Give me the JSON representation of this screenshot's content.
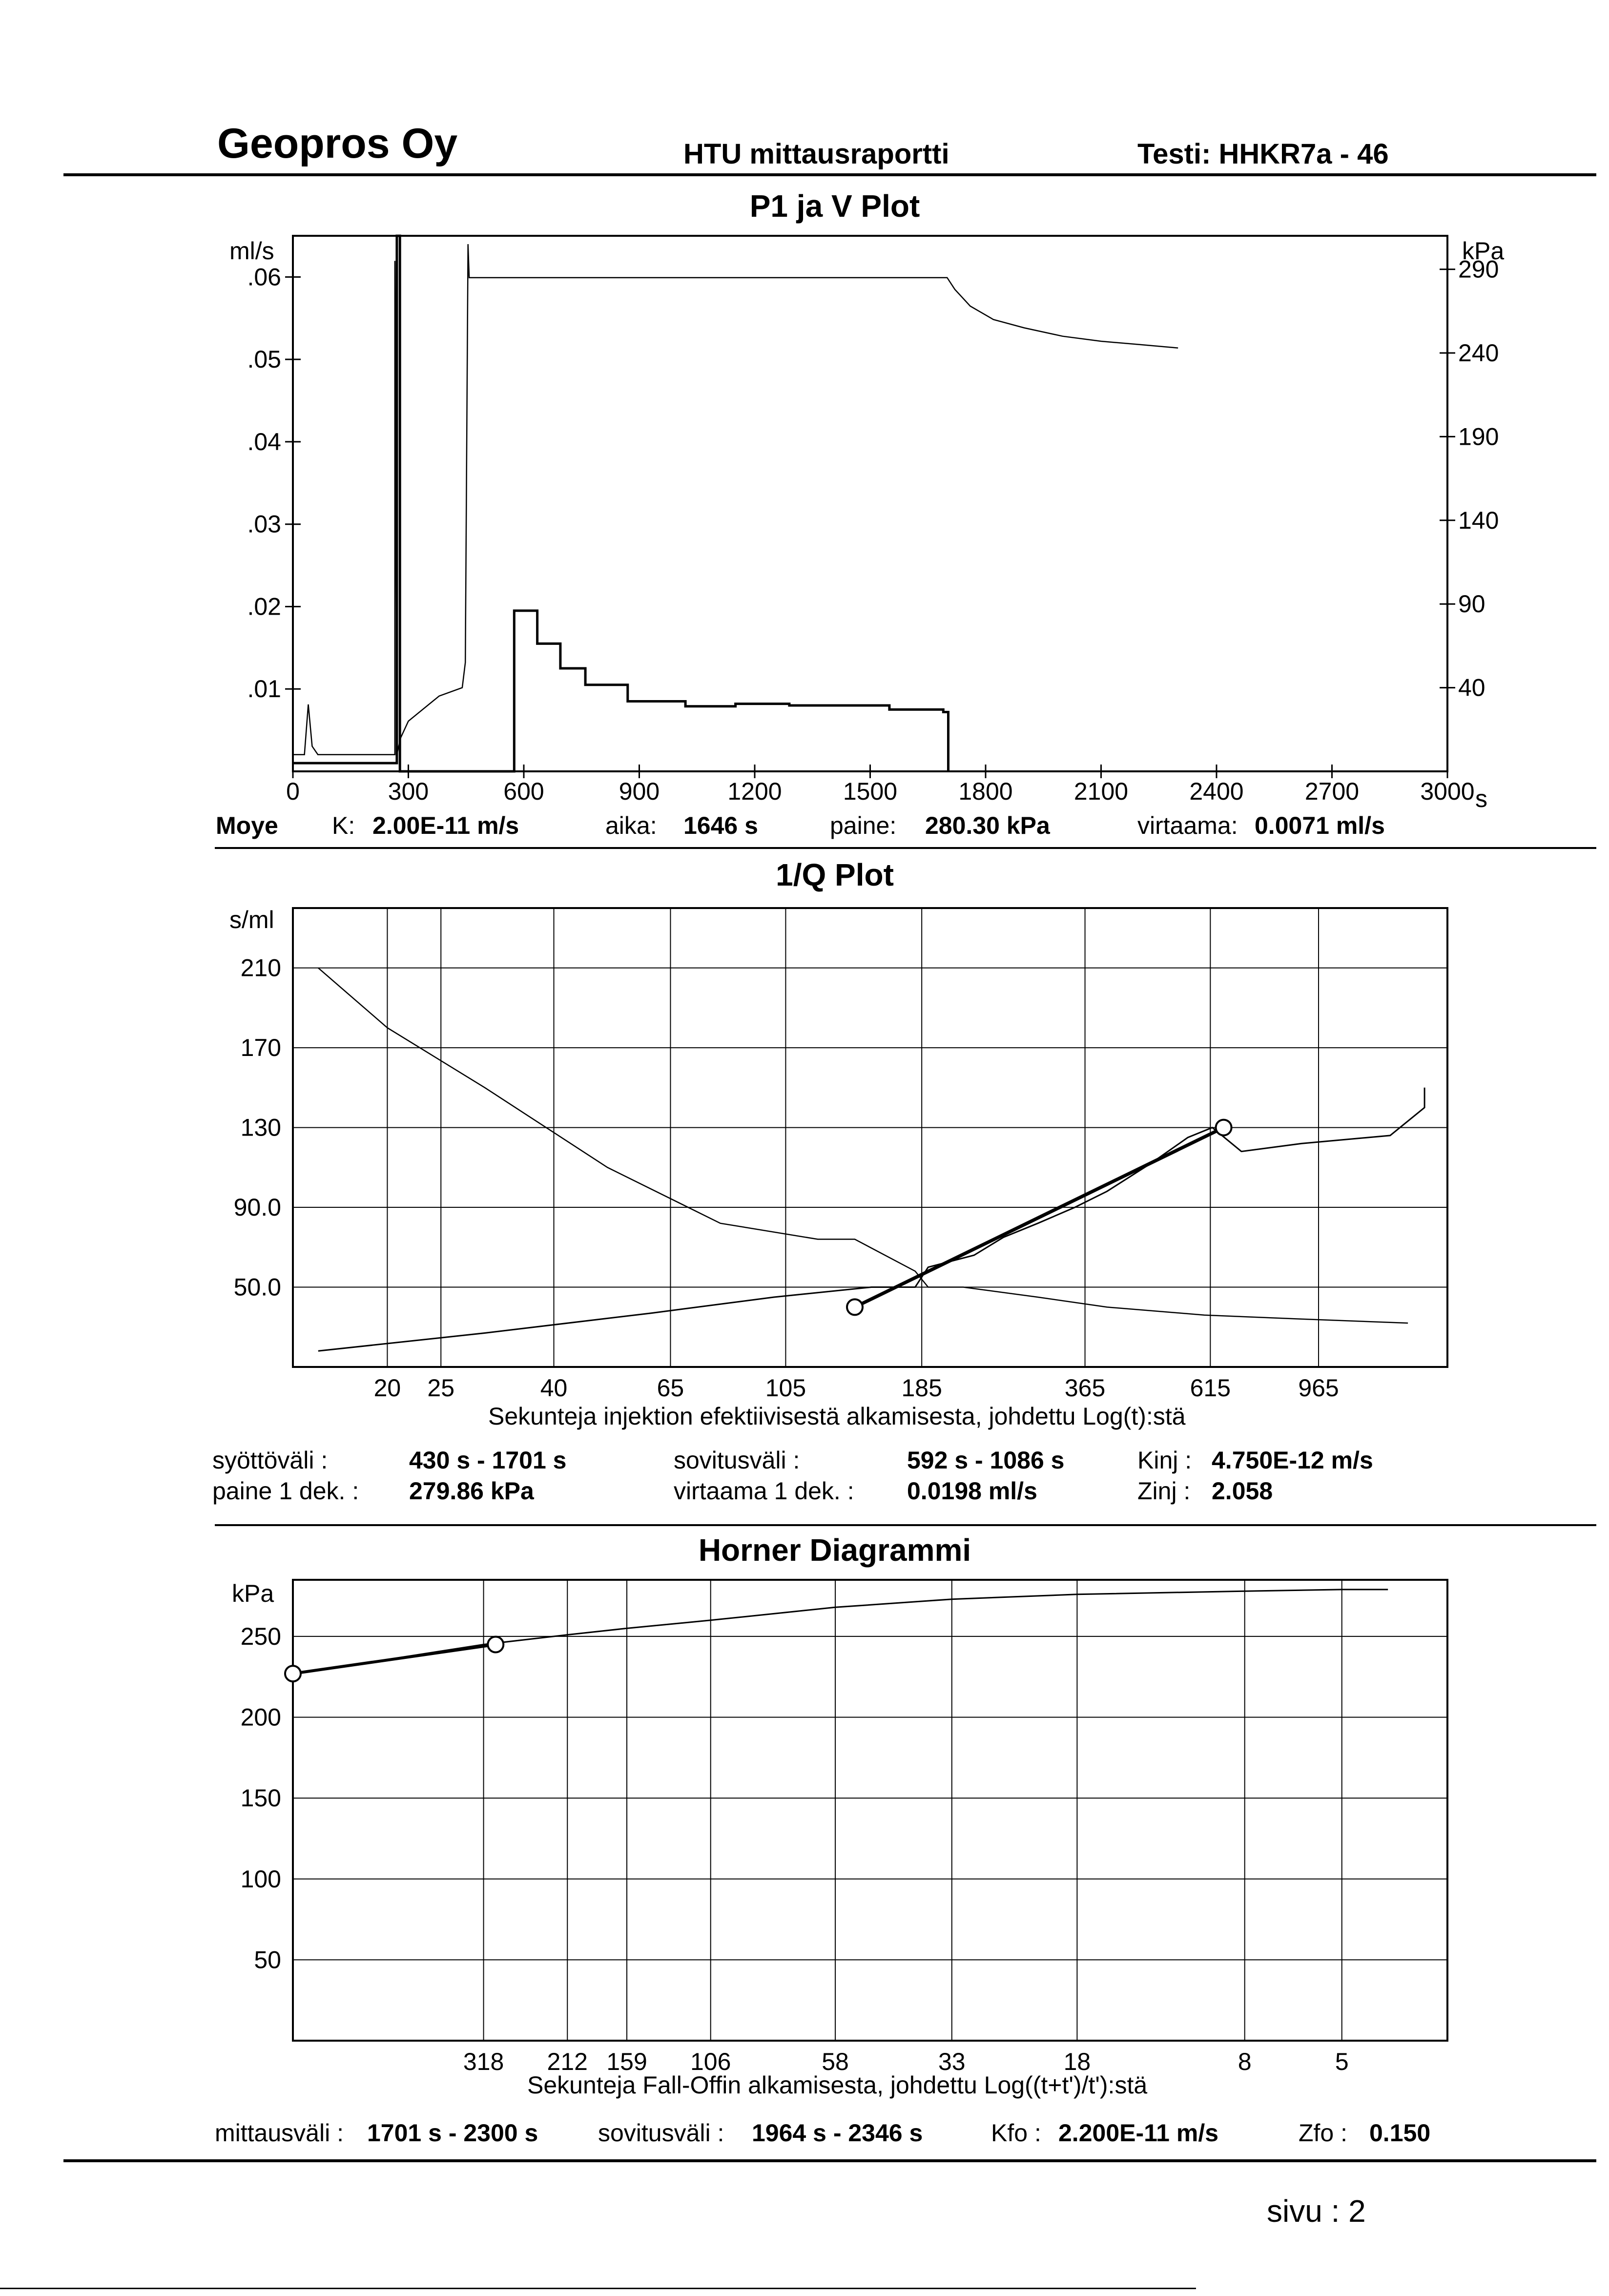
{
  "header": {
    "company": "Geopros Oy",
    "report": "HTU mittausraportti",
    "test": "Testi: HHKR7a - 46"
  },
  "chart_data": [
    {
      "type": "line",
      "title": "P1 ja V Plot",
      "xlabel": "s",
      "ylabel_left": "ml/s",
      "ylabel_right": "kPa",
      "xlim": [
        0,
        3000
      ],
      "ylim_left": [
        0,
        0.065
      ],
      "ylim_right": [
        -10,
        310
      ],
      "x_ticks": [
        "0",
        "300",
        "600",
        "900",
        "1200",
        "1500",
        "1800",
        "2100",
        "2400",
        "2700",
        "3000"
      ],
      "y_ticks_left": [
        ".06",
        ".05",
        ".04",
        ".03",
        ".02",
        ".01"
      ],
      "y_ticks_right": [
        "290",
        "240",
        "190",
        "140",
        "90",
        "40"
      ],
      "grid": false,
      "series": [
        {
          "role": "flow (left axis)",
          "x": [
            0,
            270,
            270,
            278,
            278,
            455,
            455,
            575,
            575,
            635,
            635,
            695,
            695,
            760,
            760,
            870,
            870,
            1020,
            1020,
            1150,
            1150,
            1290,
            1290,
            1550,
            1550,
            1690,
            1690,
            1703,
            1703
          ],
          "y": [
            0.001,
            0.001,
            0.065,
            0.065,
            0.0,
            0.0,
            0.0,
            0.0,
            0.0195,
            0.0195,
            0.0155,
            0.0155,
            0.0125,
            0.0125,
            0.0105,
            0.0105,
            0.0085,
            0.0085,
            0.0079,
            0.0079,
            0.0082,
            0.0082,
            0.008,
            0.008,
            0.0075,
            0.0075,
            0.0072,
            0.0072,
            0.0
          ]
        },
        {
          "role": "pressure (right axis)",
          "x": [
            0,
            30,
            40,
            50,
            65,
            265,
            265,
            270,
            280,
            300,
            380,
            440,
            448,
            455,
            458,
            560,
            1700,
            1720,
            1760,
            1820,
            1900,
            2000,
            2100,
            2200,
            2300
          ],
          "y": [
            0,
            0,
            30,
            5,
            0,
            0,
            295,
            0,
            10,
            20,
            35,
            40,
            55,
            305,
            285,
            285,
            285,
            278,
            268,
            260,
            255,
            250,
            247,
            245,
            243
          ]
        }
      ]
    },
    {
      "type": "line",
      "title": "1/Q Plot",
      "xlabel": "Sekunteja injektion efektiivisestä alkamisesta, johdettu Log(t):stä",
      "ylabel": "s/ml",
      "x_scale": "log",
      "xlim": [
        13.5,
        1650
      ],
      "ylim": [
        10,
        240
      ],
      "x_ticks": [
        "20",
        "25",
        "40",
        "65",
        "105",
        "185",
        "365",
        "615",
        "965"
      ],
      "y_ticks": [
        "210",
        "170",
        "130",
        "90.0",
        "50.0"
      ],
      "grid": true,
      "series": [
        {
          "role": "decreasing trace",
          "x": [
            15,
            20,
            30,
            50,
            80,
            120,
            140,
            180,
            190,
            220,
            300,
            400,
            600,
            900,
            1400
          ],
          "y": [
            210,
            180,
            150,
            110,
            82,
            74,
            74,
            58,
            50,
            50,
            45,
            40,
            36,
            34,
            32
          ]
        },
        {
          "role": "1/Q trace",
          "x": [
            15,
            30,
            60,
            100,
            150,
            180,
            190,
            230,
            260,
            300,
            350,
            400,
            480,
            560,
            620,
            700,
            900,
            1300,
            1500,
            1500
          ],
          "y": [
            18,
            27,
            37,
            45,
            50,
            50,
            60,
            66,
            75,
            82,
            90,
            98,
            112,
            125,
            130,
            118,
            122,
            126,
            140,
            150
          ]
        },
        {
          "role": "fitted line",
          "x": [
            140,
            650
          ],
          "y": [
            40,
            130
          ]
        }
      ]
    },
    {
      "type": "line",
      "title": "Horner Diagrammi",
      "xlabel": "Sekunteja Fall-Offin alkamisesta, johdettu Log((t+t')/t'):stä",
      "ylabel": "kPa",
      "x_scale": "log, reversed",
      "xlim": [
        800,
        3
      ],
      "ylim": [
        0,
        285
      ],
      "x_ticks": [
        "318",
        "212",
        "159",
        "106",
        "58",
        "33",
        "18",
        "8",
        "5"
      ],
      "y_ticks": [
        "250",
        "200",
        "150",
        "100",
        "50"
      ],
      "grid": true,
      "series": [
        {
          "role": "pressure",
          "x": [
            800,
            500,
            318,
            212,
            159,
            106,
            58,
            33,
            18,
            8,
            5,
            4
          ],
          "y": [
            227,
            236,
            245,
            251,
            255,
            260,
            268,
            273,
            276,
            278,
            279,
            279
          ]
        },
        {
          "role": "fitted line",
          "x": [
            800,
            300
          ],
          "y": [
            227,
            245
          ]
        }
      ]
    }
  ],
  "plot1": {
    "title": "P1 ja V Plot",
    "ylabel_left": "ml/s",
    "ylabel_right": "kPa",
    "unit_x": "s",
    "x_ticks": [
      "0",
      "300",
      "600",
      "900",
      "1200",
      "1500",
      "1800",
      "2100",
      "2400",
      "2700",
      "3000"
    ],
    "y_left": [
      ".06",
      ".05",
      ".04",
      ".03",
      ".02",
      ".01"
    ],
    "y_right": [
      "290",
      "240",
      "190",
      "140",
      "90",
      "40"
    ],
    "info": {
      "method": "Moye",
      "k_label": "K:",
      "k_value": "2.00E-11 m/s",
      "aika_label": "aika:",
      "aika_value": "1646 s",
      "paine_label": "paine:",
      "paine_value": "280.30 kPa",
      "virtaama_label": "virtaama:",
      "virtaama_value": "0.0071 ml/s"
    }
  },
  "plot2": {
    "title": "1/Q Plot",
    "ylabel": "s/ml",
    "xlabel": "Sekunteja injektion efektiivisestä alkamisesta, johdettu Log(t):stä",
    "x_ticks": [
      "20",
      "25",
      "40",
      "65",
      "105",
      "185",
      "365",
      "615",
      "965"
    ],
    "y_ticks": [
      "210",
      "170",
      "130",
      "90.0",
      "50.0"
    ],
    "info": {
      "syotto_label": "syöttöväli :",
      "syotto_value": "430 s - 1701 s",
      "sovitus_label": "sovitusväli :",
      "sovitus_value": "592 s - 1086 s",
      "kinj_label": "Kinj :",
      "kinj_value": "4.750E-12 m/s",
      "paine_label": "paine 1 dek. :",
      "paine_value": "279.86 kPa",
      "virtaama_label": "virtaama 1 dek. :",
      "virtaama_value": "0.0198 ml/s",
      "zinj_label": "Zinj :",
      "zinj_value": "2.058"
    }
  },
  "plot3": {
    "title": "Horner Diagrammi",
    "ylabel": "kPa",
    "xlabel": "Sekunteja Fall-Offin alkamisesta, johdettu Log((t+t')/t'):stä",
    "x_ticks": [
      "318",
      "212",
      "159",
      "106",
      "58",
      "33",
      "18",
      "8",
      "5"
    ],
    "y_ticks": [
      "250",
      "200",
      "150",
      "100",
      "50"
    ],
    "info": {
      "mittaus_label": "mittausväli :",
      "mittaus_value": "1701 s - 2300 s",
      "sovitus_label": "sovitusväli :",
      "sovitus_value": "1964 s - 2346 s",
      "kfo_label": "Kfo :",
      "kfo_value": "2.200E-11 m/s",
      "zfo_label": "Zfo :",
      "zfo_value": "0.150"
    }
  },
  "footer": {
    "page": "sivu : 2"
  }
}
